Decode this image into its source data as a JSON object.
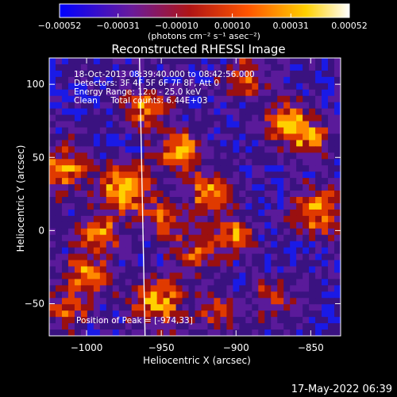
{
  "chart_data": {
    "type": "heatmap",
    "title": "Reconstructed RHESSI Image",
    "xlabel": "Heliocentric X (arcsec)",
    "ylabel": "Heliocentric Y (arcsec)",
    "xlim": [
      -1025,
      -830
    ],
    "ylim": [
      -72,
      118
    ],
    "x_ticks": [
      -1000,
      -950,
      -900,
      -850
    ],
    "x_tick_labels": [
      "−1000",
      "−950",
      "−900",
      "−850"
    ],
    "y_ticks": [
      -50,
      0,
      50,
      100
    ],
    "y_tick_labels": [
      "−50",
      "0",
      "50",
      "100"
    ],
    "colorbar": {
      "range": [
        -0.00052,
        0.00052
      ],
      "ticks": [
        -0.00052,
        -0.00031,
        -0.0001,
        0.0001,
        0.00031,
        0.00052
      ],
      "tick_labels": [
        "−0.00052",
        "−0.00031",
        "−0.00010",
        "0.00010",
        "0.00031",
        "0.00052"
      ],
      "label": "(photons cm⁻² s⁻¹ asec⁻²)",
      "colors": [
        "#0000ff",
        "#6a1b9a",
        "#b01515",
        "#ff5500",
        "#ffd000",
        "#ffffff"
      ]
    },
    "annotations": [
      "18-Oct-2013 08:39:40.000 to 08:42:56.000",
      "Detectors: 3F 4F 5F 6F 7F 8F, Att 0",
      "Energy Range: 12.0 - 25.0 keV",
      "Clean     Total counts: 6.44E+03"
    ],
    "peak_label": "Position of Peak = [-974,33]",
    "limb_x": -963,
    "grid": false,
    "legend": "none"
  },
  "footer": {
    "timestamp": "17-May-2022 06:39"
  }
}
